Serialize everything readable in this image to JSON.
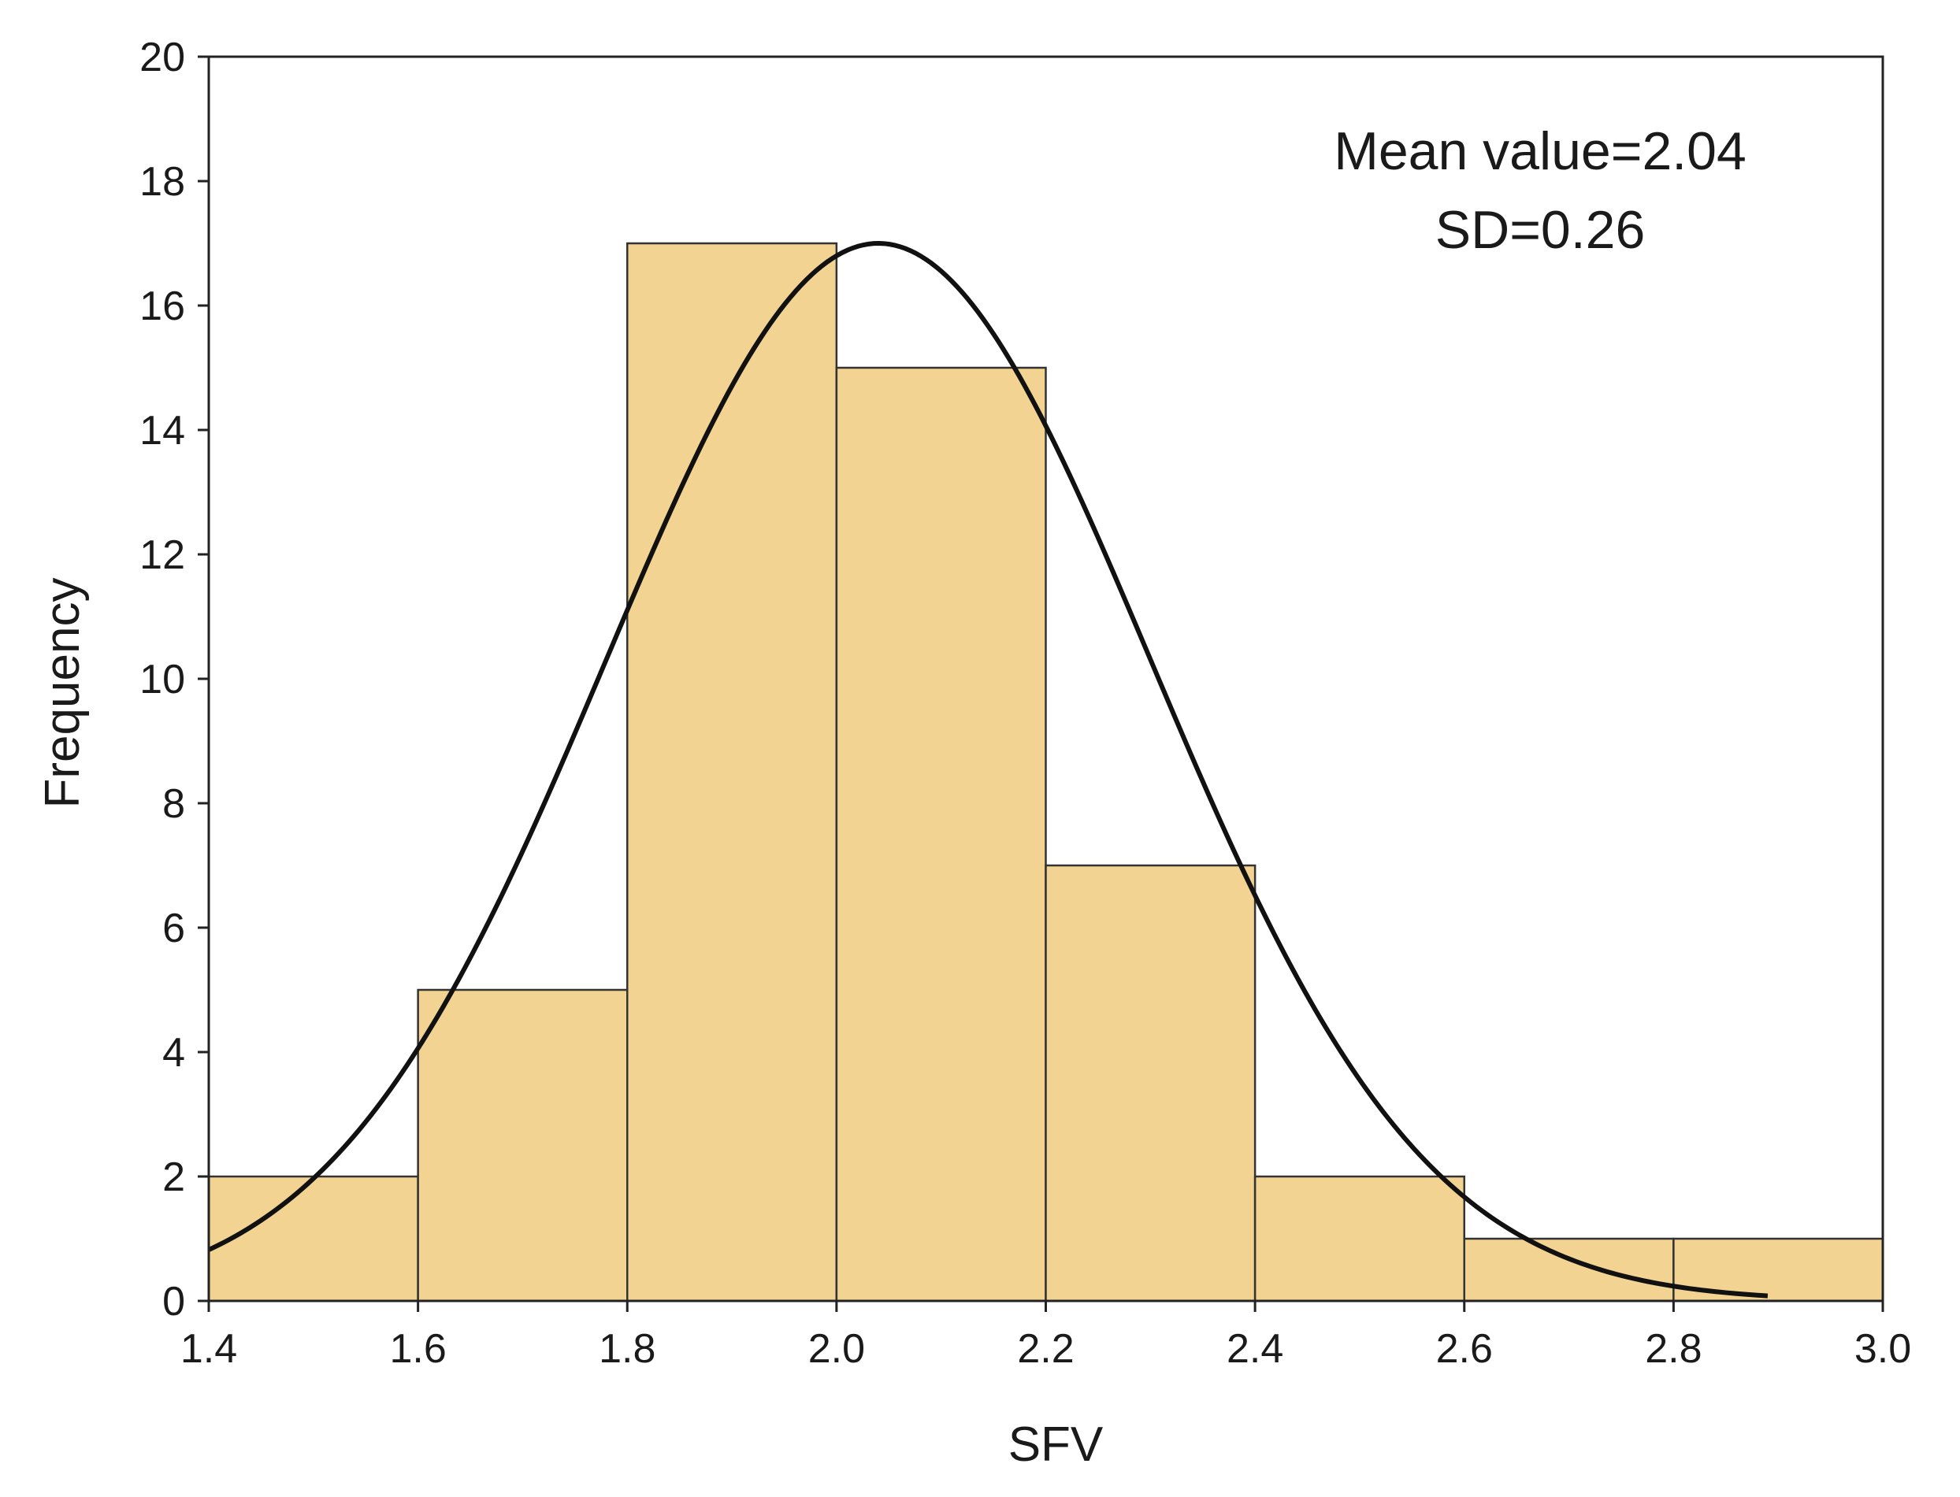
{
  "chart_data": {
    "type": "bar",
    "subtype": "histogram",
    "bins": [
      {
        "from": 1.4,
        "to": 1.6,
        "value": 2
      },
      {
        "from": 1.6,
        "to": 1.8,
        "value": 5
      },
      {
        "from": 1.8,
        "to": 2.0,
        "value": 17
      },
      {
        "from": 2.0,
        "to": 2.2,
        "value": 15
      },
      {
        "from": 2.2,
        "to": 2.4,
        "value": 7
      },
      {
        "from": 2.4,
        "to": 2.6,
        "value": 2
      },
      {
        "from": 2.6,
        "to": 2.8,
        "value": 1
      },
      {
        "from": 2.8,
        "to": 3.0,
        "value": 1
      }
    ],
    "curve": {
      "type": "normal",
      "mean": 2.04,
      "sd": 0.26,
      "peak": 17,
      "x_range": [
        1.4,
        2.89
      ]
    },
    "xlabel": "SFV",
    "ylabel": "Frequency",
    "xlim": [
      1.4,
      3.0
    ],
    "ylim": [
      0,
      20
    ],
    "xticks": [
      "1.4",
      "1.6",
      "1.8",
      "2.0",
      "2.2",
      "2.4",
      "2.6",
      "2.8",
      "3.0"
    ],
    "yticks": [
      "0",
      "2",
      "4",
      "6",
      "8",
      "10",
      "12",
      "14",
      "16",
      "18",
      "20"
    ],
    "annotations": [
      "Mean value=2.04",
      "SD=0.26"
    ],
    "colors": {
      "bar_fill": "#f2d392",
      "bar_stroke": "#333333",
      "curve": "#111111",
      "axes": "#222222"
    },
    "grid": false
  }
}
